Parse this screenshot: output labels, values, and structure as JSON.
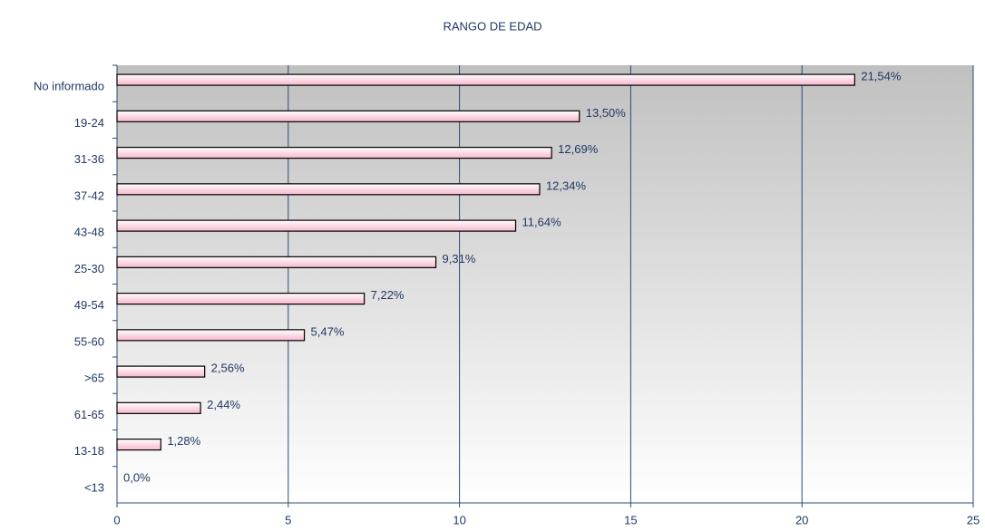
{
  "chart_data": {
    "type": "bar",
    "orientation": "horizontal",
    "title": "RANGO DE EDAD",
    "categories": [
      "No informado",
      "19-24",
      "31-36",
      "37-42",
      "43-48",
      "25-30",
      "49-54",
      "55-60",
      ">65",
      "61-65",
      "13-18",
      "<13"
    ],
    "values": [
      21.54,
      13.5,
      12.69,
      12.34,
      11.64,
      9.31,
      7.22,
      5.47,
      2.56,
      2.44,
      1.28,
      0.0
    ],
    "value_labels": [
      "21,54%",
      "13,50%",
      "12,69%",
      "12,34%",
      "11,64%",
      "9,31%",
      "7,22%",
      "5,47%",
      "2,56%",
      "2,44%",
      "1,28%",
      "0,0%"
    ],
    "color": "#f7b6cc",
    "xlim": [
      0,
      25
    ],
    "xticks": [
      0,
      5,
      10,
      15,
      20,
      25
    ],
    "grid": true
  }
}
